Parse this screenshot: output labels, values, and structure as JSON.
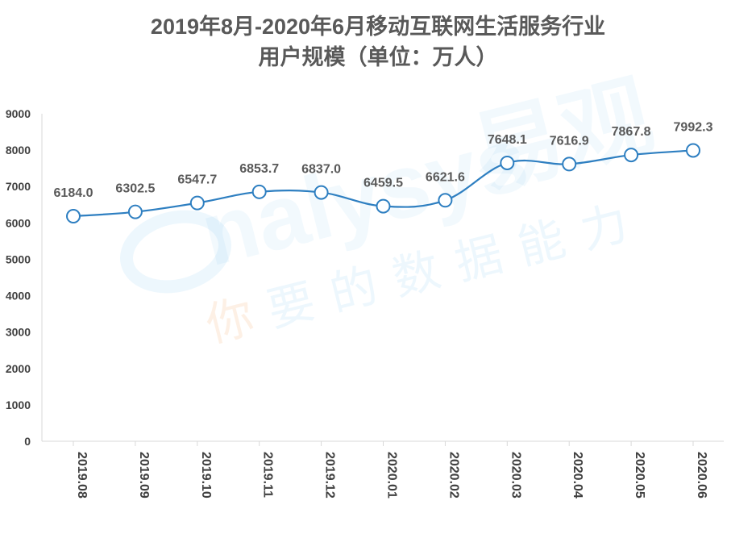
{
  "title": {
    "line1": "2019年8月-2020年6月移动互联网生活服务行业",
    "line2": "用户规模（单位：万人）"
  },
  "watermark": {
    "brand": "nalysys",
    "brand_cn": "易观",
    "slogan_first": "你",
    "slogan_rest": "要的数据能力"
  },
  "chart_data": {
    "type": "line",
    "categories": [
      "2019.08",
      "2019.09",
      "2019.10",
      "2019.11",
      "2019.12",
      "2020.01",
      "2020.02",
      "2020.03",
      "2020.04",
      "2020.05",
      "2020.06"
    ],
    "values": [
      6184.0,
      6302.5,
      6547.7,
      6853.7,
      6837.0,
      6459.5,
      6621.6,
      7648.1,
      7616.9,
      7867.8,
      7992.3
    ],
    "value_labels": [
      "6184.0",
      "6302.5",
      "6547.7",
      "6853.7",
      "6837.0",
      "6459.5",
      "6621.6",
      "7648.1",
      "7616.9",
      "7867.8",
      "7992.3"
    ],
    "yticks": [
      0,
      1000,
      2000,
      3000,
      4000,
      5000,
      6000,
      7000,
      8000,
      9000
    ],
    "ylim": [
      0,
      9000
    ],
    "xlabel": "",
    "ylabel": "",
    "grid": false,
    "legend": "none",
    "line_color": "#2e7fc1",
    "marker_fill": "#ffffff",
    "axis_color": "#d9d9d9"
  }
}
